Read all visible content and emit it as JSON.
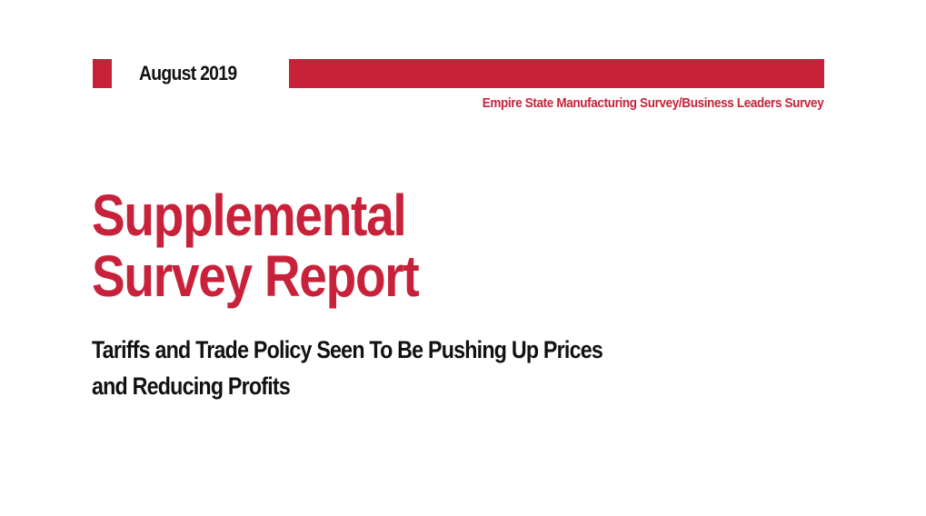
{
  "header": {
    "date": "August 2019",
    "series": "Empire State Manufacturing Survey/Business Leaders Survey"
  },
  "report": {
    "title_lines": [
      "Supplemental",
      "Survey Report"
    ],
    "subtitle_lines": [
      "Tariffs and Trade Policy Seen To Be Pushing Up Prices",
      "and Reducing Profits"
    ]
  },
  "colors": {
    "accent": "#c8223b",
    "text": "#111111",
    "background": "#ffffff"
  }
}
